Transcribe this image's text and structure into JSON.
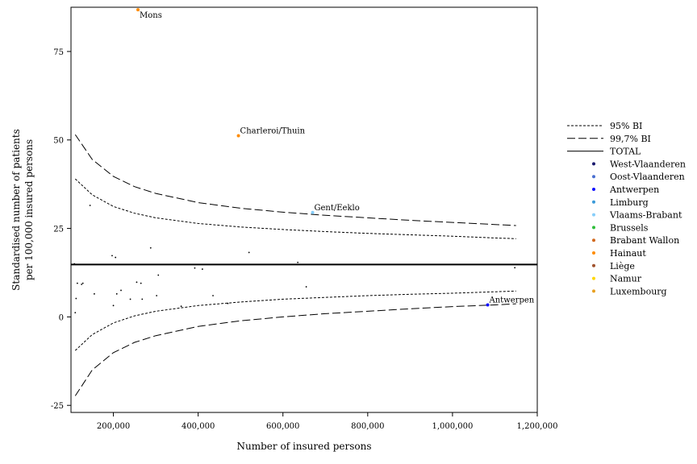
{
  "chart_data": {
    "type": "scatter",
    "title": "",
    "xlabel": "Number of insured persons",
    "ylabel_line1": "Standardised number of patients",
    "ylabel_line2": "per 100,000 insured persons",
    "xlim": [
      100000,
      1200000
    ],
    "ylim": [
      -27,
      87.5
    ],
    "x_ticks": [
      200000,
      400000,
      600000,
      800000,
      1000000,
      1200000
    ],
    "x_tick_labels": [
      "200,000",
      "400,000",
      "600,000",
      "800,000",
      "1,000,000",
      "1,200,000"
    ],
    "y_ticks": [
      -25,
      0,
      25,
      50,
      75
    ],
    "y_tick_labels": [
      "-25",
      "0",
      "25",
      "50",
      "75"
    ],
    "grid": false,
    "legend_position": "right",
    "total_value": 14.8,
    "limits": {
      "x": [
        110000,
        150000,
        200000,
        250000,
        300000,
        400000,
        500000,
        600000,
        700000,
        800000,
        900000,
        1000000,
        1100000,
        1150000
      ],
      "ci95_upper": [
        39,
        34.5,
        31.2,
        29.3,
        28.0,
        26.4,
        25.4,
        24.7,
        24.1,
        23.6,
        23.2,
        22.8,
        22.3,
        22.1
      ],
      "ci95_lower": [
        -9.5,
        -5.0,
        -1.7,
        0.3,
        1.6,
        3.2,
        4.2,
        5.0,
        5.5,
        6.0,
        6.4,
        6.7,
        7.1,
        7.3
      ],
      "ci997_upper": [
        51.5,
        44.5,
        39.7,
        36.8,
        34.9,
        32.3,
        30.7,
        29.6,
        28.7,
        28.0,
        27.3,
        26.7,
        26.1,
        25.8
      ],
      "ci997_lower": [
        -22.3,
        -15.0,
        -10.1,
        -7.2,
        -5.3,
        -2.7,
        -1.1,
        0.0,
        0.9,
        1.6,
        2.3,
        2.9,
        3.4,
        3.7
      ]
    },
    "series": [
      {
        "name": "West-Vlaanderen",
        "color": "#1a1a6e",
        "points": []
      },
      {
        "name": "Oost-Vlaanderen",
        "color": "#4a6fd0",
        "points": []
      },
      {
        "name": "Antwerpen",
        "color": "#1010ff",
        "points": [
          [
            1083000,
            3.4
          ]
        ]
      },
      {
        "name": "Limburg",
        "color": "#3a9ad9",
        "points": []
      },
      {
        "name": "Vlaams-Brabant",
        "color": "#87cefa",
        "points": [
          [
            670000,
            29.5
          ]
        ]
      },
      {
        "name": "Brussels",
        "color": "#2ebd3a",
        "points": []
      },
      {
        "name": "Brabant Wallon",
        "color": "#d2691e",
        "points": []
      },
      {
        "name": "Hainaut",
        "color": "#ff8c00",
        "points": [
          [
            495000,
            51.2
          ],
          [
            258000,
            86.8
          ]
        ]
      },
      {
        "name": "Liège",
        "color": "#a0522d",
        "points": []
      },
      {
        "name": "Namur",
        "color": "#ffd700",
        "points": []
      },
      {
        "name": "Luxembourg",
        "color": "#e8a020",
        "points": []
      }
    ],
    "other_points": [
      [
        108000,
        15.0
      ],
      [
        110000,
        1.2
      ],
      [
        112000,
        5.2
      ],
      [
        115000,
        9.5
      ],
      [
        125000,
        9.2
      ],
      [
        128000,
        9.5
      ],
      [
        145000,
        31.5
      ],
      [
        155000,
        6.5
      ],
      [
        197000,
        17.3
      ],
      [
        200000,
        3.2
      ],
      [
        205000,
        16.8
      ],
      [
        208000,
        6.5
      ],
      [
        218000,
        7.5
      ],
      [
        240000,
        5.0
      ],
      [
        255000,
        9.8
      ],
      [
        265000,
        9.5
      ],
      [
        268000,
        5.0
      ],
      [
        288000,
        19.5
      ],
      [
        302000,
        6.0
      ],
      [
        306000,
        11.8
      ],
      [
        360000,
        3.0
      ],
      [
        392000,
        13.8
      ],
      [
        410000,
        13.5
      ],
      [
        435000,
        6.0
      ],
      [
        470000,
        3.8
      ],
      [
        520000,
        18.2
      ],
      [
        635000,
        15.4
      ],
      [
        655000,
        8.5
      ],
      [
        1147000,
        13.9
      ]
    ],
    "legend_lines": [
      "95% BI",
      "99,7% BI",
      "TOTAL"
    ],
    "annotations": [
      {
        "text": "Mons",
        "x": 258000,
        "y": 86.8
      },
      {
        "text": "Charleroi/Thuin",
        "x": 495000,
        "y": 51.2
      },
      {
        "text": "Gent/Eeklo",
        "x": 670000,
        "y": 29.5
      },
      {
        "text": "Antwerpen",
        "x": 1083000,
        "y": 3.4
      }
    ]
  }
}
